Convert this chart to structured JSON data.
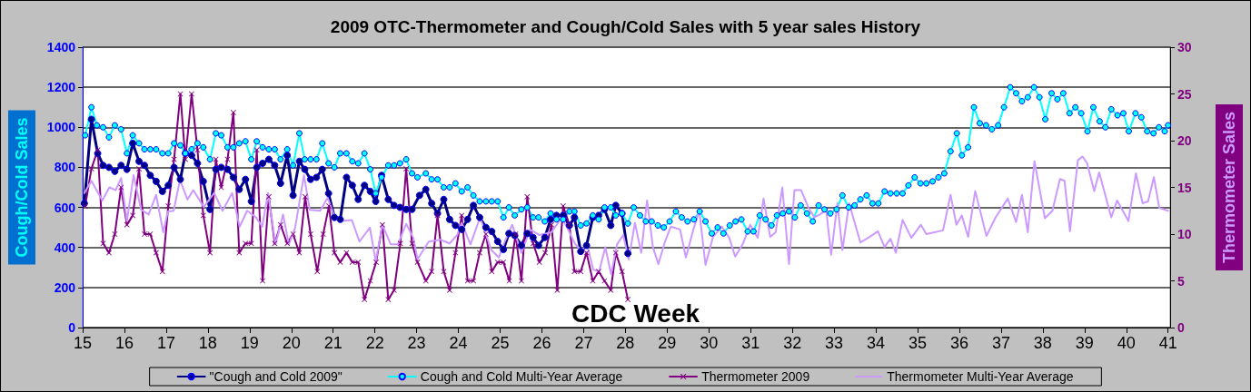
{
  "chart_data": {
    "type": "line",
    "title": "2009 OTC-Thermometer and Cough/Cold Sales with 5 year sales History",
    "xlabel": "CDC Week",
    "ylabel": "Cough/Cold Sales",
    "y2label": "Thermometer Sales",
    "xlim": [
      15,
      41.05
    ],
    "xticks": [
      15,
      16,
      17,
      18,
      19,
      20,
      21,
      22,
      23,
      24,
      25,
      26,
      27,
      28,
      29,
      30,
      31,
      32,
      33,
      34,
      35,
      36,
      37,
      38,
      39,
      40,
      41
    ],
    "ylim": [
      0,
      1400
    ],
    "yticks": [
      0,
      200,
      400,
      600,
      800,
      1000,
      1200,
      1400
    ],
    "y2lim": [
      0,
      30
    ],
    "y2ticks": [
      0,
      5,
      10,
      15,
      20,
      25,
      30
    ],
    "grid": "y",
    "legend": "bottom",
    "line_style": "solid",
    "series": [
      {
        "name": "\"Cough and Cold 2009\"",
        "color": "#000080",
        "marker": "circle",
        "x": [
          15.04,
          15.21,
          15.36,
          15.49,
          15.63,
          15.77,
          15.92,
          16.06,
          16.2,
          16.35,
          16.48,
          16.62,
          16.76,
          16.91,
          17.05,
          17.19,
          17.34,
          17.46,
          17.61,
          17.75,
          17.89,
          18.05,
          18.19,
          18.32,
          18.47,
          18.61,
          18.75,
          18.9,
          19.04,
          19.17,
          19.31,
          19.46,
          19.6,
          19.74,
          19.9,
          20.04,
          20.19,
          20.32,
          20.46,
          20.6,
          20.74,
          20.89,
          21.03,
          21.17,
          21.32,
          21.46,
          21.6,
          21.75,
          21.89,
          22.02,
          22.16,
          22.32,
          22.46,
          22.6,
          22.75,
          22.89,
          23.07,
          23.22,
          23.36,
          23.5,
          23.65,
          23.79,
          23.93,
          24.08,
          24.22,
          24.36,
          24.51,
          24.66,
          24.8,
          24.94,
          25.08,
          25.21,
          25.35,
          25.51,
          25.65,
          25.79,
          25.92,
          26.07,
          26.21,
          26.35,
          26.51,
          26.66,
          26.78,
          26.93,
          27.07,
          27.22,
          27.36,
          27.5,
          27.65,
          27.77,
          27.92,
          28.06
        ],
        "values": [
          620,
          1040,
          870,
          810,
          800,
          780,
          810,
          790,
          920,
          830,
          810,
          760,
          730,
          680,
          710,
          800,
          740,
          870,
          860,
          820,
          730,
          590,
          790,
          800,
          790,
          750,
          690,
          740,
          630,
          800,
          820,
          840,
          810,
          720,
          860,
          660,
          830,
          790,
          740,
          750,
          790,
          670,
          550,
          540,
          750,
          710,
          640,
          710,
          680,
          630,
          760,
          640,
          610,
          600,
          590,
          590,
          660,
          690,
          620,
          570,
          640,
          540,
          510,
          490,
          540,
          610,
          550,
          500,
          480,
          430,
          390,
          470,
          460,
          410,
          470,
          450,
          410,
          450,
          540,
          560,
          560,
          510,
          550,
          380,
          410,
          550,
          560,
          590,
          510,
          610,
          570,
          370
        ]
      },
      {
        "name": "Cough and Cold Multi-Year Average",
        "color": "#00ffff",
        "marker": "circle",
        "x": [
          15.06,
          15.21,
          15.34,
          15.49,
          15.63,
          15.77,
          15.92,
          16.06,
          16.2,
          16.35,
          16.48,
          16.62,
          16.76,
          16.91,
          17.05,
          17.19,
          17.34,
          17.46,
          17.61,
          17.75,
          17.89,
          18.05,
          18.19,
          18.32,
          18.47,
          18.61,
          18.75,
          18.9,
          19.04,
          19.17,
          19.31,
          19.46,
          19.6,
          19.74,
          19.9,
          20.04,
          20.19,
          20.32,
          20.46,
          20.6,
          20.74,
          20.89,
          21.03,
          21.17,
          21.32,
          21.46,
          21.6,
          21.75,
          21.89,
          22.02,
          22.16,
          22.32,
          22.46,
          22.6,
          22.75,
          22.89,
          23.02,
          23.22,
          23.36,
          23.5,
          23.65,
          23.79,
          23.93,
          24.08,
          24.22,
          24.36,
          24.51,
          24.66,
          24.8,
          24.94,
          25.08,
          25.21,
          25.35,
          25.51,
          25.65,
          25.79,
          25.92,
          26.07,
          26.21,
          26.35,
          26.51,
          26.66,
          26.78,
          26.93,
          27.07,
          27.22,
          27.36,
          27.5,
          27.65,
          27.77,
          27.92,
          28.06,
          28.2,
          28.35,
          28.49,
          28.63,
          28.78,
          28.92,
          29.06,
          29.21,
          29.35,
          29.49,
          29.64,
          29.78,
          29.92,
          30.07,
          30.21,
          30.35,
          30.5,
          30.64,
          30.78,
          30.93,
          31.07,
          31.22,
          31.36,
          31.5,
          31.63,
          31.77,
          31.92,
          32.06,
          32.2,
          32.35,
          32.49,
          32.63,
          32.77,
          32.91,
          33.06,
          33.2,
          33.35,
          33.49,
          33.63,
          33.78,
          33.92,
          34.06,
          34.21,
          34.35,
          34.5,
          34.64,
          34.78,
          34.93,
          35.07,
          35.21,
          35.36,
          35.5,
          35.64,
          35.79,
          35.94,
          36.06,
          36.21,
          36.35,
          36.49,
          36.64,
          36.78,
          36.93,
          37.07,
          37.22,
          37.36,
          37.5,
          37.64,
          37.79,
          37.92,
          38.06,
          38.21,
          38.35,
          38.49,
          38.64,
          38.78,
          38.92,
          39.07,
          39.21,
          39.36,
          39.5,
          39.64,
          39.79,
          39.93,
          40.06,
          40.22,
          40.36,
          40.5,
          40.65,
          40.78,
          40.92,
          41
        ],
        "values": [
          960,
          1100,
          1010,
          1000,
          950,
          1010,
          990,
          870,
          960,
          920,
          890,
          890,
          890,
          870,
          870,
          920,
          910,
          870,
          890,
          920,
          900,
          840,
          970,
          960,
          900,
          900,
          920,
          930,
          840,
          930,
          900,
          890,
          890,
          840,
          890,
          810,
          970,
          840,
          840,
          840,
          920,
          820,
          800,
          870,
          870,
          830,
          820,
          870,
          790,
          670,
          750,
          810,
          810,
          820,
          840,
          770,
          750,
          770,
          740,
          740,
          700,
          700,
          720,
          680,
          700,
          660,
          630,
          630,
          630,
          630,
          550,
          600,
          560,
          590,
          600,
          550,
          550,
          530,
          570,
          540,
          540,
          580,
          580,
          510,
          520,
          560,
          540,
          600,
          600,
          560,
          570,
          520,
          600,
          560,
          530,
          530,
          510,
          500,
          530,
          580,
          550,
          530,
          540,
          580,
          530,
          470,
          500,
          470,
          510,
          530,
          540,
          480,
          480,
          560,
          540,
          510,
          560,
          570,
          580,
          550,
          610,
          570,
          530,
          610,
          590,
          570,
          590,
          660,
          600,
          610,
          640,
          660,
          620,
          620,
          680,
          670,
          670,
          670,
          710,
          750,
          720,
          720,
          730,
          750,
          770,
          880,
          970,
          860,
          900,
          1100,
          1020,
          1010,
          990,
          1010,
          1100,
          1200,
          1170,
          1130,
          1150,
          1200,
          1150,
          1040,
          1170,
          1140,
          1170,
          1070,
          1100,
          1070,
          980,
          1100,
          1030,
          1000,
          1090,
          1060,
          1070,
          980,
          1070,
          1050,
          980,
          970,
          1000,
          980,
          1010
        ]
      },
      {
        "name": "Thermometer 2009",
        "color": "#800080",
        "marker": "cross",
        "axis": "y2",
        "x": [
          15.06,
          15.21,
          15.36,
          15.49,
          15.63,
          15.77,
          15.92,
          16.06,
          16.2,
          16.35,
          16.48,
          16.62,
          16.76,
          16.91,
          17.05,
          17.19,
          17.34,
          17.46,
          17.61,
          17.75,
          17.89,
          18.05,
          18.19,
          18.32,
          18.47,
          18.61,
          18.75,
          18.9,
          19.04,
          19.17,
          19.31,
          19.46,
          19.6,
          19.74,
          19.9,
          20.04,
          20.19,
          20.33,
          20.46,
          20.62,
          20.76,
          20.9,
          21.03,
          21.17,
          21.32,
          21.46,
          21.6,
          21.75,
          21.89,
          22.03,
          22.18,
          22.32,
          22.46,
          22.61,
          22.75,
          22.89,
          23.02,
          23.22,
          23.36,
          23.5,
          23.65,
          23.79,
          23.93,
          24.08,
          24.22,
          24.36,
          24.51,
          24.66,
          24.8,
          24.94,
          25.08,
          25.22,
          25.37,
          25.51,
          25.65,
          25.79,
          25.94,
          26.08,
          26.23,
          26.37,
          26.51,
          26.66,
          26.78,
          26.93,
          27.07,
          27.22,
          27.36,
          27.5,
          27.65,
          27.77,
          27.92,
          28.06
        ],
        "values": [
          13,
          17,
          19,
          9,
          8,
          10,
          15,
          11,
          12,
          17,
          10,
          10,
          8,
          6,
          13,
          18,
          25,
          18,
          25,
          19,
          12,
          8,
          18,
          15,
          18,
          23,
          8,
          9,
          9,
          19,
          5,
          14,
          9,
          11,
          9,
          10,
          8,
          14,
          10,
          6,
          10,
          13,
          8,
          7,
          8,
          7,
          7,
          3,
          5,
          7,
          11,
          3,
          4,
          9,
          17,
          9,
          7,
          5,
          6,
          12,
          6,
          4,
          8,
          12,
          5,
          5,
          8,
          10,
          6,
          7,
          7,
          5,
          10,
          5,
          14,
          9,
          7,
          8,
          11,
          4,
          13,
          11,
          6,
          6,
          8,
          5,
          6,
          5,
          4,
          8,
          6,
          3
        ]
      },
      {
        "name": "Thermometer Multi-Year Average",
        "color": "#cc99ff",
        "marker": "none",
        "axis": "y2",
        "x": [
          15.04,
          15.21,
          15.47,
          15.64,
          15.79,
          15.92,
          16.06,
          16.22,
          16.4,
          16.58,
          16.76,
          16.93,
          17.04,
          17.18,
          17.33,
          17.51,
          17.65,
          17.9,
          18.15,
          18.35,
          18.58,
          18.76,
          18.94,
          19.15,
          19.3,
          19.44,
          19.62,
          19.8,
          19.94,
          20.09,
          20.3,
          20.44,
          20.69,
          20.87,
          21.02,
          21.23,
          21.45,
          21.63,
          21.88,
          22.02,
          22.18,
          22.38,
          22.55,
          22.75,
          22.92,
          23.02,
          23.29,
          23.57,
          23.79,
          23.97,
          24.08,
          24.29,
          24.52,
          24.79,
          24.97,
          25.11,
          25.29,
          25.51,
          25.72,
          25.94,
          26.23,
          26.48,
          26.66,
          26.8,
          26.94,
          27.09,
          27.23,
          27.37,
          27.52,
          27.66,
          27.8,
          27.95,
          28.08,
          28.23,
          28.38,
          28.52,
          28.66,
          28.79,
          28.95,
          29.09,
          29.31,
          29.45,
          29.63,
          29.77,
          29.92,
          30.1,
          30.31,
          30.49,
          30.63,
          30.81,
          30.99,
          31.17,
          31.31,
          31.47,
          31.6,
          31.76,
          31.92,
          32.05,
          32.21,
          32.39,
          32.53,
          32.66,
          32.81,
          32.93,
          33.08,
          33.2,
          33.36,
          33.63,
          33.85,
          34.05,
          34.21,
          34.35,
          34.48,
          34.64,
          34.85,
          35.08,
          35.21,
          35.61,
          35.79,
          35.93,
          36.06,
          36.21,
          36.38,
          36.65,
          36.87,
          37.16,
          37.36,
          37.5,
          37.64,
          37.8,
          38.05,
          38.23,
          38.41,
          38.52,
          38.65,
          38.84,
          38.95,
          39.06,
          39.23,
          39.35,
          39.64,
          39.78,
          40.05,
          40.23,
          40.39,
          40.52,
          40.66,
          40.79,
          41
        ],
        "values": [
          14.4,
          15.7,
          13.6,
          15,
          14.7,
          16,
          11.4,
          16.3,
          12.6,
          12.1,
          14.2,
          10.2,
          12.4,
          12.5,
          15.8,
          13.7,
          14.7,
          12.9,
          14.4,
          12.5,
          14.4,
          10.8,
          12.5,
          11.8,
          10.8,
          14.4,
          8.9,
          12.1,
          8.9,
          10.7,
          16.3,
          12.6,
          12.5,
          13.9,
          12,
          11.4,
          11.5,
          9.2,
          10.7,
          7.1,
          11,
          8.9,
          8.9,
          11.1,
          9.6,
          7.3,
          9.2,
          9.4,
          9,
          9.9,
          11.2,
          8.9,
          11.8,
          8.3,
          7.5,
          9.2,
          11,
          8,
          10.5,
          9.9,
          10.2,
          11.8,
          10.2,
          8.9,
          8.3,
          8.8,
          6.2,
          6,
          8.6,
          5.7,
          8.9,
          9.9,
          7.3,
          11.2,
          8,
          13.6,
          8.6,
          6.8,
          9.2,
          10.8,
          10.5,
          7.5,
          10.5,
          12.5,
          6.7,
          9.7,
          10.8,
          9.6,
          7.6,
          8.9,
          11,
          9.6,
          13.8,
          9.7,
          10.2,
          15,
          6.8,
          14.7,
          14.7,
          12.8,
          11.8,
          12.1,
          12.6,
          7.8,
          13.3,
          8.3,
          13.3,
          9.1,
          9.7,
          10.3,
          8.6,
          9.5,
          8,
          11.5,
          9.6,
          11,
          10,
          10.4,
          14.2,
          11,
          12,
          9.7,
          14.6,
          9.8,
          11.8,
          13.8,
          11.3,
          14.2,
          10.2,
          17.8,
          11.7,
          12.5,
          15.9,
          15.7,
          10.3,
          17.9,
          18.3,
          17.6,
          14.6,
          16.6,
          11.8,
          13.6,
          11.4,
          16.5,
          13.3,
          13.5,
          16.1,
          12.8,
          12.5
        ]
      }
    ]
  }
}
